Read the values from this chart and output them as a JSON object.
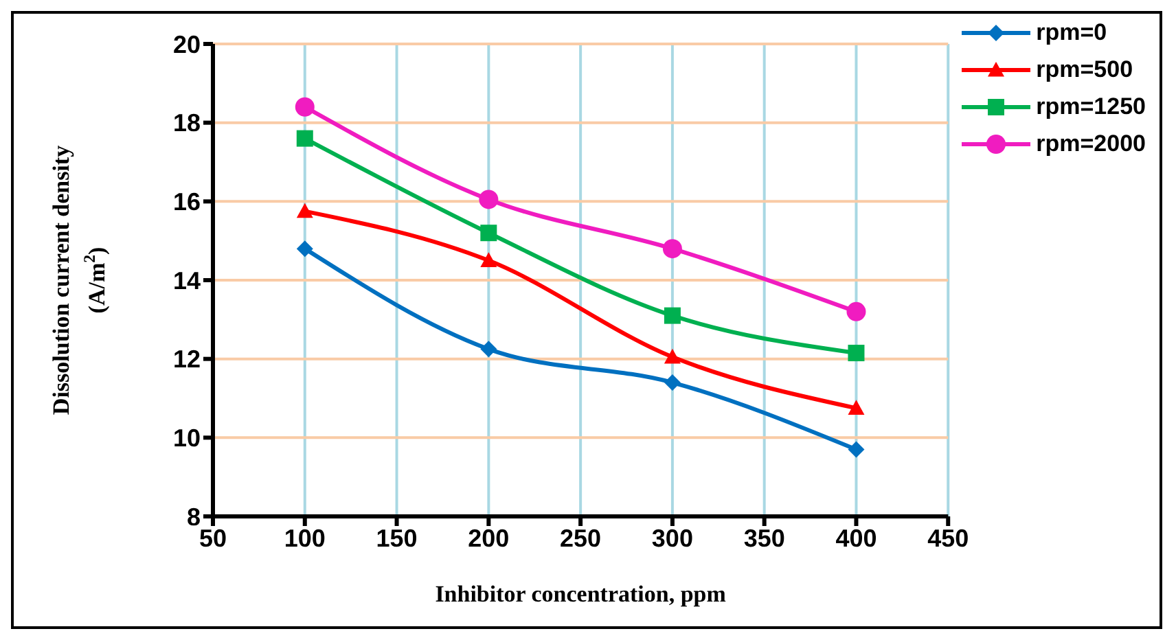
{
  "chart_data": {
    "type": "line",
    "xlabel": "Inhibitor  concentration, ppm",
    "ylabel": "Dissolution  current  density\n(A/m$^{2}$)",
    "x": [
      100,
      200,
      300,
      400
    ],
    "series": [
      {
        "name": "rpm=0",
        "color": "#0070c0",
        "marker": "diamond",
        "values": [
          14.8,
          12.25,
          11.4,
          9.7
        ]
      },
      {
        "name": "rpm=500",
        "color": "#ff0000",
        "marker": "triangle",
        "values": [
          15.75,
          14.5,
          12.05,
          10.75
        ]
      },
      {
        "name": "rpm=1250",
        "color": "#00b050",
        "marker": "square",
        "values": [
          17.6,
          15.2,
          13.1,
          12.15
        ]
      },
      {
        "name": "rpm=2000",
        "color": "#f01cc0",
        "marker": "circle",
        "values": [
          18.4,
          16.05,
          14.8,
          13.2
        ]
      }
    ],
    "xlim": [
      50,
      450
    ],
    "xticks": [
      50,
      100,
      150,
      200,
      250,
      300,
      350,
      400,
      450
    ],
    "ylim": [
      8,
      20
    ],
    "yticks": [
      8,
      10,
      12,
      14,
      16,
      18,
      20
    ],
    "grid": true,
    "legend": "top right",
    "line_style": "solid"
  }
}
